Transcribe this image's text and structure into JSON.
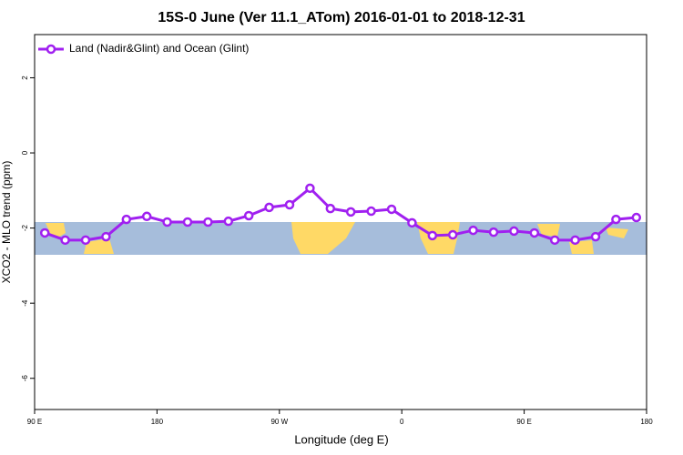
{
  "chart_data": {
    "type": "line",
    "title": "15S-0 June (Ver 11.1_ATom)   2016-01-01 to 2018-12-31",
    "x_label": "Longitude (deg E)",
    "y_label": "XCO2 - MLO trend (ppm)",
    "xlim": [
      90,
      540
    ],
    "ylim": [
      -6.83,
      3.15
    ],
    "xticks": [
      {
        "value": 90,
        "label": "90 E"
      },
      180,
      {
        "value": 270,
        "label": "90 W"
      },
      {
        "value": 360,
        "label": "0"
      },
      {
        "value": 450,
        "label": "90 E"
      },
      {
        "value": 540,
        "label": "180"
      }
    ],
    "yticks": [
      2,
      0,
      -2,
      -4,
      -6
    ],
    "legend": "top-left",
    "x": [
      97.5,
      112.5,
      127.5,
      142.5,
      157.5,
      172.5,
      187.5,
      202.5,
      217.5,
      232.5,
      247.5,
      262.5,
      277.5,
      292.5,
      307.5,
      322.5,
      337.5,
      352.5,
      367.5,
      382.5,
      397.5,
      412.5,
      427.5,
      442.5,
      457.5,
      472.5,
      487.5,
      502.5,
      517.5,
      532.5
    ],
    "series": [
      {
        "name": "Land (Nadir&Glint) and Ocean (Glint)",
        "color": "#a020f0",
        "values": [
          -2.13,
          -2.32,
          -2.32,
          -2.23,
          -1.77,
          -1.69,
          -1.84,
          -1.84,
          -1.84,
          -1.82,
          -1.67,
          -1.45,
          -1.38,
          -0.94,
          -1.48,
          -1.57,
          -1.55,
          -1.5,
          -1.86,
          -2.2,
          -2.18,
          -2.06,
          -2.11,
          -2.08,
          -2.13,
          -2.32,
          -2.32,
          -2.23,
          -1.77,
          -1.72
        ]
      }
    ]
  }
}
